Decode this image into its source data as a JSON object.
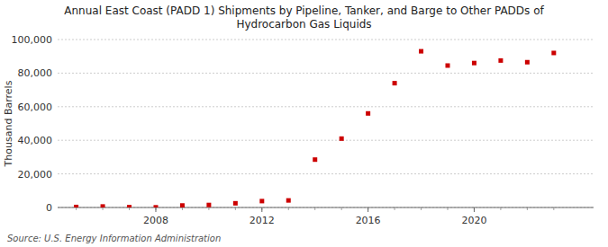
{
  "chart_data": {
    "type": "scatter",
    "title": "Annual East Coast (PADD 1) Shipments by Pipeline, Tanker, and Barge to Other PADDs of\nHydrocarbon Gas Liquids",
    "ylabel": "Thousand Barrels",
    "source": "Source: U.S. Energy Information Administration",
    "x": [
      2005,
      2006,
      2007,
      2008,
      2009,
      2010,
      2011,
      2012,
      2013,
      2014,
      2015,
      2016,
      2017,
      2018,
      2019,
      2020,
      2021,
      2022,
      2023
    ],
    "values": [
      300,
      600,
      200,
      100,
      1200,
      1500,
      2500,
      3800,
      4200,
      28500,
      41000,
      56000,
      74000,
      93000,
      84500,
      86000,
      87500,
      86500,
      92000
    ],
    "color": "#cc0000",
    "marker": "square",
    "grid": true,
    "xlim": [
      2004.3,
      2024.5
    ],
    "xticks": [
      2008,
      2012,
      2016,
      2020
    ],
    "ylim": [
      0,
      100000
    ],
    "yticks": [
      0,
      {
        "value": 20000,
        "label": "20,000"
      },
      {
        "value": 40000,
        "label": "40,000"
      },
      {
        "value": 60000,
        "label": "60,000"
      },
      {
        "value": 80000,
        "label": "80,000"
      },
      {
        "value": 100000,
        "label": "100,000"
      }
    ]
  }
}
